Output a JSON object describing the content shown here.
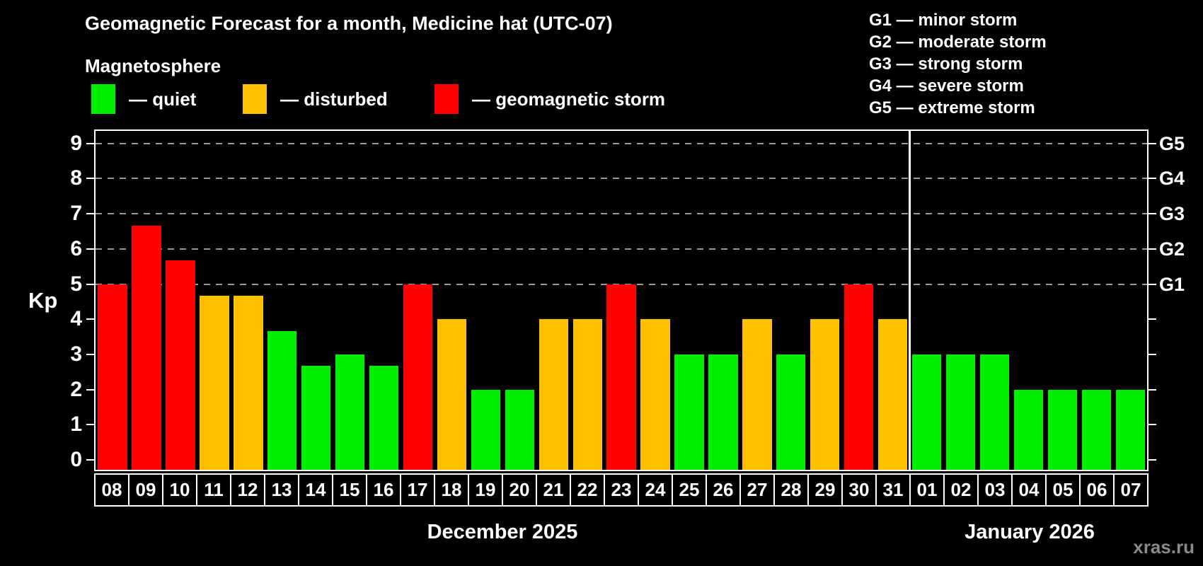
{
  "header": {
    "title": "Geomagnetic Forecast for a month, Medicine hat (UTC-07)"
  },
  "legend": {
    "subtitle": "Magnetosphere",
    "items": [
      {
        "label": "— quiet",
        "status": "quiet",
        "color": "#00ee00"
      },
      {
        "label": "— disturbed",
        "status": "disturbed",
        "color": "#ffc000"
      },
      {
        "label": "— geomagnetic storm",
        "status": "storm",
        "color": "#ff0000"
      }
    ]
  },
  "g_legend": {
    "items": [
      "G1 — minor storm",
      "G2 — moderate storm",
      "G3 — strong storm",
      "G4 — severe storm",
      "G5 — extreme storm"
    ]
  },
  "axes": {
    "y_label": "Kp",
    "y_ticks": [
      0,
      1,
      2,
      3,
      4,
      5,
      6,
      7,
      8,
      9
    ],
    "right_labels": [
      {
        "value": 5,
        "label": "G1"
      },
      {
        "value": 6,
        "label": "G2"
      },
      {
        "value": 7,
        "label": "G3"
      },
      {
        "value": 8,
        "label": "G4"
      },
      {
        "value": 9,
        "label": "G5"
      }
    ],
    "months": [
      {
        "label": "December 2025",
        "days": 24
      },
      {
        "label": "January 2026",
        "days": 7
      }
    ]
  },
  "watermark": "xras.ru",
  "colors": {
    "background": "#000000",
    "text": "#ffffff",
    "grid": "#999999",
    "quiet": "#00ee00",
    "disturbed": "#ffc000",
    "storm": "#ff0000",
    "watermark": "#8a8a8a"
  },
  "chart_data": {
    "type": "bar",
    "title": "Geomagnetic Forecast for a month, Medicine hat (UTC-07)",
    "ylabel": "Kp",
    "ylim": [
      0,
      9.4
    ],
    "gridlines_at": [
      5,
      6,
      7,
      8,
      9
    ],
    "legend_position": "top",
    "month_split_index": 24,
    "days": [
      {
        "month": "December 2025",
        "day": "08",
        "kp": 5.0,
        "status": "storm"
      },
      {
        "month": "December 2025",
        "day": "09",
        "kp": 6.67,
        "status": "storm"
      },
      {
        "month": "December 2025",
        "day": "10",
        "kp": 5.67,
        "status": "storm"
      },
      {
        "month": "December 2025",
        "day": "11",
        "kp": 4.67,
        "status": "disturbed"
      },
      {
        "month": "December 2025",
        "day": "12",
        "kp": 4.67,
        "status": "disturbed"
      },
      {
        "month": "December 2025",
        "day": "13",
        "kp": 3.67,
        "status": "quiet"
      },
      {
        "month": "December 2025",
        "day": "14",
        "kp": 2.67,
        "status": "quiet"
      },
      {
        "month": "December 2025",
        "day": "15",
        "kp": 3.0,
        "status": "quiet"
      },
      {
        "month": "December 2025",
        "day": "16",
        "kp": 2.67,
        "status": "quiet"
      },
      {
        "month": "December 2025",
        "day": "17",
        "kp": 5.0,
        "status": "storm"
      },
      {
        "month": "December 2025",
        "day": "18",
        "kp": 4.0,
        "status": "disturbed"
      },
      {
        "month": "December 2025",
        "day": "19",
        "kp": 2.0,
        "status": "quiet"
      },
      {
        "month": "December 2025",
        "day": "20",
        "kp": 2.0,
        "status": "quiet"
      },
      {
        "month": "December 2025",
        "day": "21",
        "kp": 4.0,
        "status": "disturbed"
      },
      {
        "month": "December 2025",
        "day": "22",
        "kp": 4.0,
        "status": "disturbed"
      },
      {
        "month": "December 2025",
        "day": "23",
        "kp": 5.0,
        "status": "storm"
      },
      {
        "month": "December 2025",
        "day": "24",
        "kp": 4.0,
        "status": "disturbed"
      },
      {
        "month": "December 2025",
        "day": "25",
        "kp": 3.0,
        "status": "quiet"
      },
      {
        "month": "December 2025",
        "day": "26",
        "kp": 3.0,
        "status": "quiet"
      },
      {
        "month": "December 2025",
        "day": "27",
        "kp": 4.0,
        "status": "disturbed"
      },
      {
        "month": "December 2025",
        "day": "28",
        "kp": 3.0,
        "status": "quiet"
      },
      {
        "month": "December 2025",
        "day": "29",
        "kp": 4.0,
        "status": "disturbed"
      },
      {
        "month": "December 2025",
        "day": "30",
        "kp": 5.0,
        "status": "storm"
      },
      {
        "month": "December 2025",
        "day": "31",
        "kp": 4.0,
        "status": "disturbed"
      },
      {
        "month": "January 2026",
        "day": "01",
        "kp": 3.0,
        "status": "quiet"
      },
      {
        "month": "January 2026",
        "day": "02",
        "kp": 3.0,
        "status": "quiet"
      },
      {
        "month": "January 2026",
        "day": "03",
        "kp": 3.0,
        "status": "quiet"
      },
      {
        "month": "January 2026",
        "day": "04",
        "kp": 2.0,
        "status": "quiet"
      },
      {
        "month": "January 2026",
        "day": "05",
        "kp": 2.0,
        "status": "quiet"
      },
      {
        "month": "January 2026",
        "day": "06",
        "kp": 2.0,
        "status": "quiet"
      },
      {
        "month": "January 2026",
        "day": "07",
        "kp": 2.0,
        "status": "quiet"
      }
    ]
  }
}
